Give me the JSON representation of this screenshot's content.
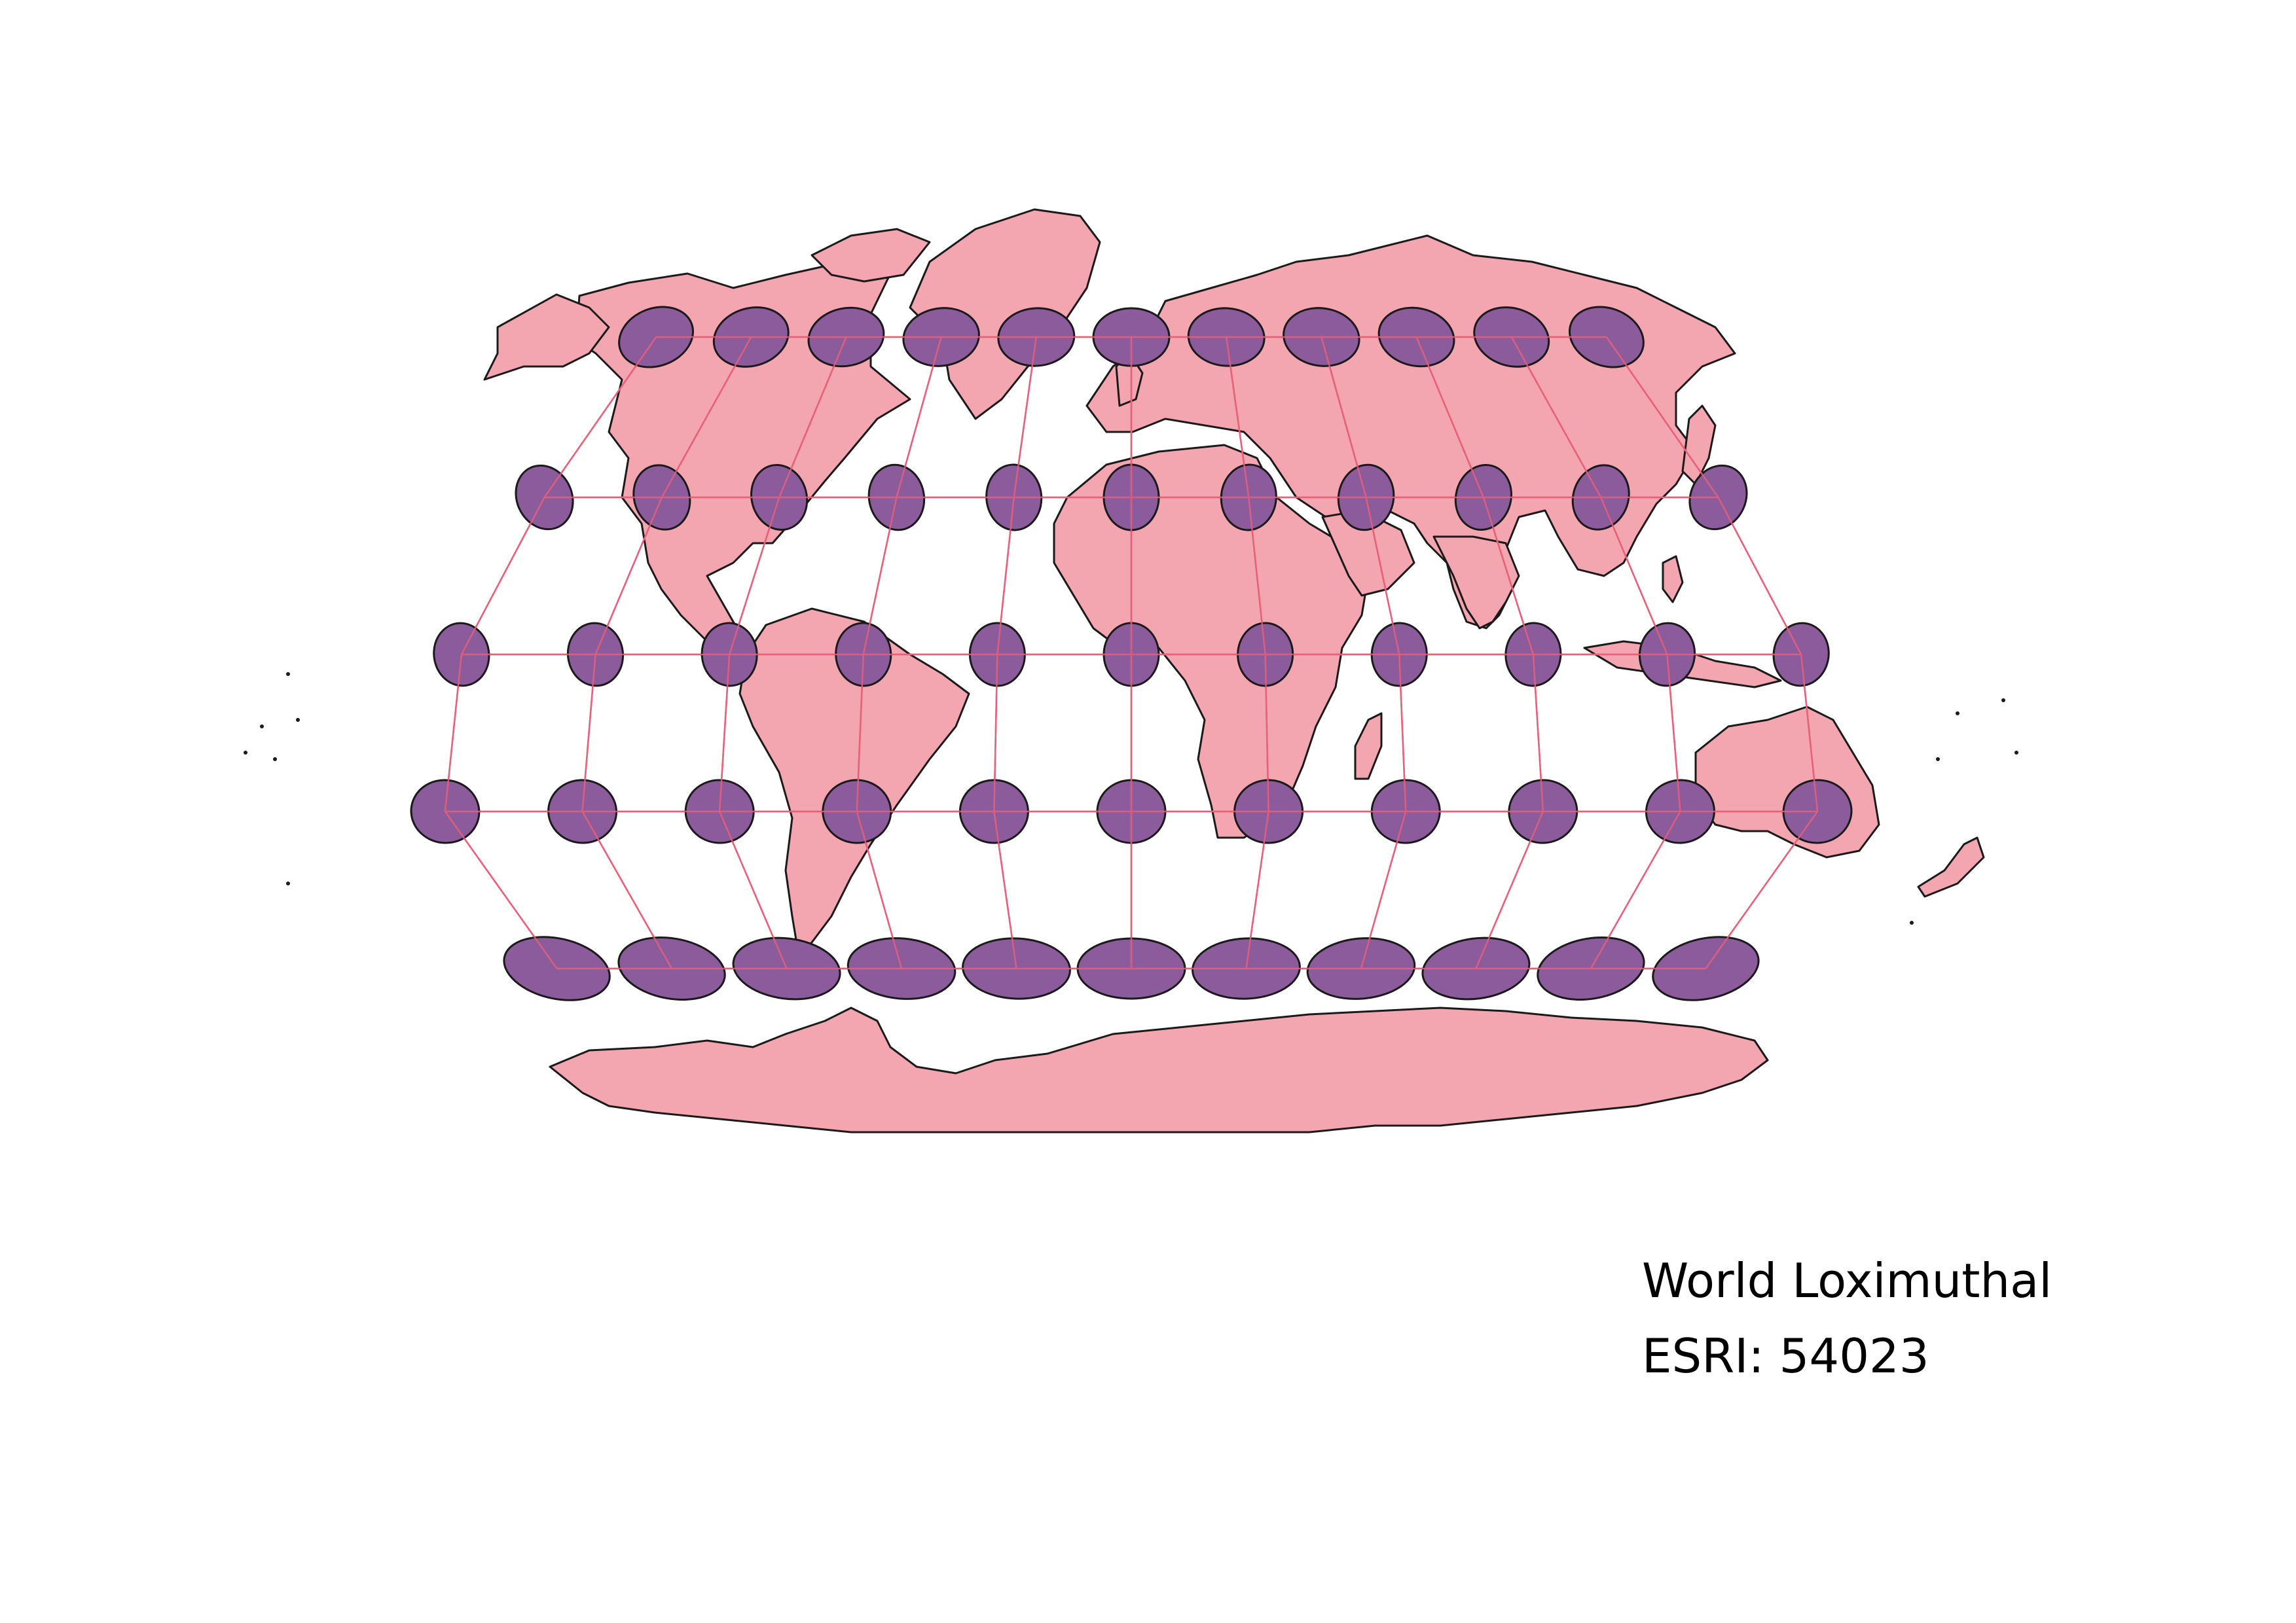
{
  "map": {
    "projection_name": "World Loximuthal",
    "projection_code": "ESRI: 54023",
    "indicatrix": {
      "latitudes": [
        60,
        30,
        0,
        -30,
        -60
      ],
      "longitudes": [
        -150,
        -120,
        -90,
        -60,
        -30,
        0,
        30,
        60,
        90,
        120,
        150
      ]
    },
    "colors": {
      "land_fill": "#f4a6b0",
      "coastline": "#1a1a1a",
      "ellipse_fill": "#8c5b9b",
      "ellipse_stroke": "#1a1a1a",
      "graticule": "#e8607a",
      "background": "#ffffff"
    }
  }
}
